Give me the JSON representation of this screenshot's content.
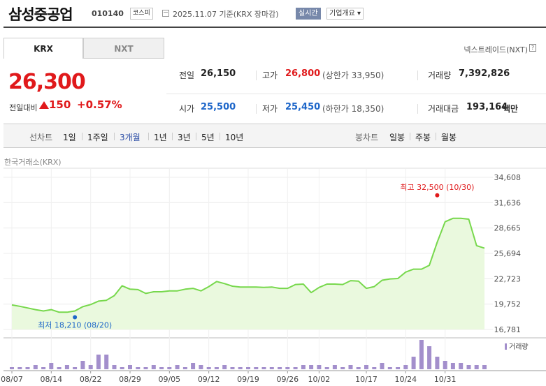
{
  "header": {
    "company_name": "삼성중공업",
    "code": "010140",
    "market": "코스피",
    "date_basis": "2025.11.07  기준(KRX 장마감)",
    "realtime_label": "실시간",
    "overview_label": "기업개요 ▾"
  },
  "market_tabs": [
    {
      "label": "KRX",
      "selected": true
    },
    {
      "label": "NXT",
      "selected": false
    }
  ],
  "nxt_link_label": "넥스트레이드(NXT)",
  "price": {
    "current": "26,300",
    "change_label": "전일대비",
    "change_value": "150",
    "change_percent": "+0.57%",
    "direction": "up",
    "up_color": "#e0191b"
  },
  "quote": {
    "prev_close": {
      "label": "전일",
      "value": "26,150"
    },
    "high": {
      "label": "고가",
      "value": "26,800",
      "limit_label": "(상한가 33,950)"
    },
    "volume": {
      "label": "거래량",
      "value": "7,392,826"
    },
    "open": {
      "label": "시가",
      "value": "25,500"
    },
    "low": {
      "label": "저가",
      "value": "25,450",
      "limit_label": "(하한가 18,350)"
    },
    "trade_value": {
      "label": "거래대금",
      "value": "193,164",
      "unit": "백만"
    }
  },
  "range_bar": {
    "line_label": "선차트",
    "line_ranges": [
      "1일",
      "1주일",
      "3개월",
      "1년",
      "3년",
      "5년",
      "10년"
    ],
    "selected_range": "3개월",
    "candle_label": "봉차트",
    "candle_ranges": [
      "일봉",
      "주봉",
      "월봉"
    ]
  },
  "source_label": "한국거래소(KRX)",
  "chart_data": {
    "type": "area",
    "x": [
      "08/07",
      "08/08",
      "08/11",
      "08/12",
      "08/13",
      "08/14",
      "08/18",
      "08/19",
      "08/20",
      "08/21",
      "08/22",
      "08/25",
      "08/26",
      "08/27",
      "08/28",
      "08/29",
      "09/01",
      "09/02",
      "09/03",
      "09/04",
      "09/05",
      "09/08",
      "09/09",
      "09/10",
      "09/11",
      "09/12",
      "09/15",
      "09/16",
      "09/17",
      "09/18",
      "09/19",
      "09/22",
      "09/23",
      "09/24",
      "09/25",
      "09/26",
      "09/29",
      "09/30",
      "10/01",
      "10/02",
      "10/10",
      "10/13",
      "10/14",
      "10/15",
      "10/16",
      "10/17",
      "10/20",
      "10/21",
      "10/22",
      "10/23",
      "10/24",
      "10/27",
      "10/28",
      "10/29",
      "10/30",
      "10/31",
      "11/03",
      "11/04",
      "11/05",
      "11/06",
      "11/07"
    ],
    "close": [
      19650,
      19500,
      19300,
      19100,
      18950,
      19100,
      18800,
      18800,
      18950,
      19450,
      19700,
      20100,
      20200,
      20750,
      21900,
      21500,
      21450,
      21000,
      21200,
      21200,
      21300,
      21300,
      21500,
      21600,
      21300,
      21800,
      22400,
      22150,
      21850,
      21750,
      21750,
      21750,
      21700,
      21750,
      21600,
      21600,
      22050,
      22100,
      21100,
      21700,
      22100,
      22100,
      22050,
      22500,
      22450,
      21600,
      21800,
      22550,
      22700,
      22750,
      23500,
      23850,
      23850,
      24300,
      27000,
      29400,
      29800,
      29800,
      29700,
      26600,
      26300
    ],
    "volume": [
      1,
      1,
      1,
      2,
      1,
      3,
      1,
      2,
      1,
      4,
      2,
      7,
      7,
      2,
      1,
      2,
      1,
      1,
      2,
      1,
      1,
      2,
      1,
      3,
      2,
      1,
      1,
      2,
      1,
      1,
      1,
      1,
      1,
      1,
      1,
      1,
      1,
      2,
      2,
      2,
      1,
      2,
      1,
      2,
      1,
      2,
      1,
      3,
      1,
      1,
      2,
      6,
      14,
      11,
      6,
      4,
      3,
      3,
      2,
      2,
      2
    ],
    "x_ticks": [
      "08/07",
      "08/14",
      "08/22",
      "08/29",
      "09/05",
      "09/12",
      "09/19",
      "09/26",
      "10/02",
      "10/17",
      "10/24",
      "10/31"
    ],
    "y_ticks": [
      34608,
      31636,
      28665,
      25694,
      22723,
      19752,
      16781
    ],
    "ylim": [
      16781,
      34608
    ],
    "high_marker": {
      "label": "최고 32,500 (10/30)",
      "value": 32500,
      "date": "10/30"
    },
    "low_marker": {
      "label": "최저 18,210 (08/20)",
      "value": 18210,
      "date": "08/20"
    },
    "volume_label": "거래량",
    "line_color": "#77d84c",
    "fill_color": "#eaf9de",
    "volume_color": "#a38fcc",
    "high_color": "#e0191b",
    "low_color": "#1d66c9"
  }
}
